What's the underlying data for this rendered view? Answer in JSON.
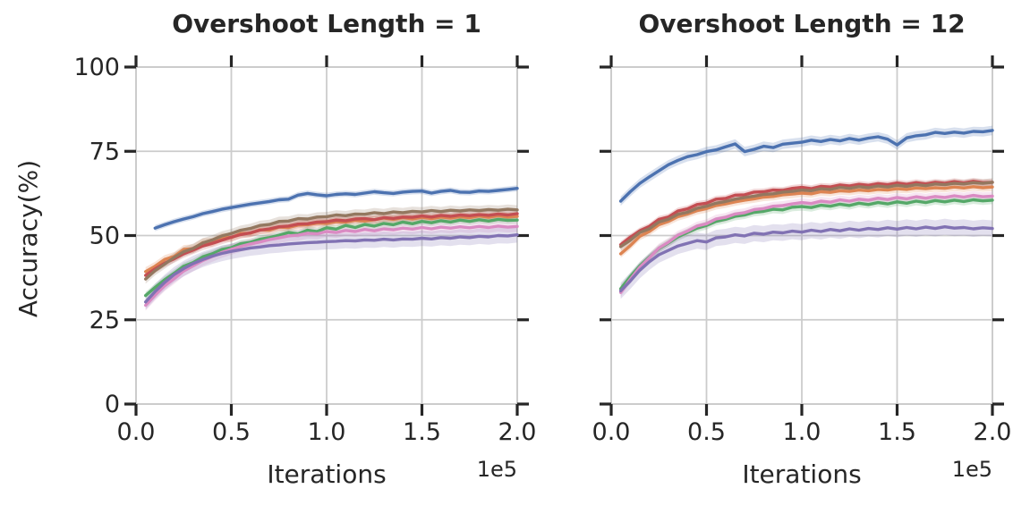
{
  "chart_data": [
    {
      "type": "line",
      "title": "Overshoot Length = 1",
      "xlabel": "Iterations",
      "ylabel": "Accuracy(%)",
      "x_offset_text": "1e5",
      "xlim": [
        0,
        2.0
      ],
      "ylim": [
        0,
        100
      ],
      "xtick_values": [
        0,
        0.5,
        1.0,
        1.5,
        2.0
      ],
      "xtick_labels": [
        "0.0",
        "0.5",
        "1.0",
        "1.5",
        "2.0"
      ],
      "ytick_values": [
        0,
        25,
        50,
        75,
        100
      ],
      "ytick_labels": [
        "0",
        "25",
        "50",
        "75",
        "100"
      ],
      "grid": true,
      "legend": "none",
      "x_step": 0.05,
      "series": [
        {
          "name": "orange",
          "color": "#DD8452",
          "band": 1.3,
          "x0": 0.05,
          "y": [
            39.3,
            40.9,
            42.9,
            43.8,
            45.9,
            46.1,
            47.9,
            48.0,
            49.5,
            49.4,
            50.6,
            50.7,
            51.7,
            51.6,
            52.5,
            52.4,
            53.1,
            53.2,
            53.7,
            53.6,
            54.1,
            54.0,
            54.5,
            54.3,
            54.7,
            55.2,
            54.8,
            55.3,
            54.9,
            55.4,
            55.0,
            55.5,
            55.2,
            55.6,
            55.3,
            55.8,
            55.4,
            55.9,
            55.5,
            55.7
          ]
        },
        {
          "name": "green",
          "color": "#55A868",
          "band": 1.1,
          "x0": 0.05,
          "y": [
            32.2,
            34.6,
            36.9,
            38.8,
            40.9,
            42.0,
            43.7,
            44.6,
            45.9,
            46.4,
            47.6,
            48.0,
            48.9,
            49.4,
            50.1,
            50.9,
            50.5,
            51.6,
            51.2,
            52.3,
            51.9,
            53.0,
            52.4,
            53.3,
            52.8,
            53.6,
            53.2,
            54.0,
            53.5,
            54.2,
            53.8,
            54.4,
            54.0,
            54.6,
            54.2,
            54.7,
            54.3,
            54.8,
            54.5,
            54.6
          ]
        },
        {
          "name": "red",
          "color": "#C44E52",
          "band": 1.2,
          "x0": 0.05,
          "y": [
            38.2,
            40.1,
            41.8,
            43.1,
            44.6,
            45.7,
            46.9,
            47.7,
            48.6,
            49.5,
            50.3,
            50.8,
            51.6,
            52.0,
            52.6,
            52.8,
            53.4,
            53.5,
            54.0,
            54.1,
            54.6,
            54.4,
            54.9,
            55.0,
            54.7,
            55.3,
            55.1,
            55.5,
            55.4,
            55.8,
            55.5,
            56.0,
            55.7,
            56.1,
            55.9,
            56.2,
            56.0,
            56.4,
            56.1,
            56.5
          ]
        },
        {
          "name": "brown",
          "color": "#937860",
          "band": 1.4,
          "x0": 0.05,
          "y": [
            37.1,
            39.6,
            41.5,
            43.5,
            45.2,
            46.2,
            47.8,
            48.7,
            49.9,
            50.6,
            51.6,
            52.1,
            53.0,
            53.3,
            54.2,
            54.3,
            55.0,
            54.9,
            55.5,
            55.6,
            56.1,
            55.9,
            56.4,
            56.3,
            56.8,
            56.5,
            57.0,
            56.8,
            57.2,
            57.0,
            57.4,
            57.1,
            57.5,
            57.3,
            57.6,
            57.4,
            57.7,
            57.5,
            57.8,
            57.6
          ]
        },
        {
          "name": "pink",
          "color": "#DA8BC3",
          "band": 1.6,
          "x0": 0.05,
          "y": [
            29.3,
            32.3,
            35.1,
            37.2,
            39.5,
            41.0,
            42.6,
            43.8,
            45.0,
            45.9,
            46.8,
            47.5,
            48.1,
            48.8,
            49.3,
            49.9,
            50.1,
            50.7,
            50.5,
            51.2,
            50.9,
            51.5,
            51.2,
            51.8,
            51.4,
            52.0,
            51.7,
            52.2,
            51.9,
            52.4,
            52.0,
            52.5,
            52.2,
            52.6,
            52.3,
            52.7,
            52.4,
            52.8,
            52.5,
            52.7
          ]
        },
        {
          "name": "purple",
          "color": "#8172B3",
          "band": 2.3,
          "x0": 0.05,
          "y": [
            30.3,
            33.4,
            36.1,
            38.4,
            40.2,
            41.7,
            42.9,
            43.9,
            44.7,
            45.3,
            45.8,
            46.3,
            46.6,
            47.0,
            47.2,
            47.5,
            47.7,
            47.9,
            48.0,
            48.2,
            48.3,
            48.5,
            48.4,
            48.7,
            48.6,
            48.9,
            48.7,
            49.0,
            48.9,
            49.2,
            49.0,
            49.4,
            49.2,
            49.6,
            49.4,
            49.8,
            49.6,
            50.0,
            49.9,
            50.2
          ]
        },
        {
          "name": "blue",
          "color": "#4C72B0",
          "band": 0.9,
          "x0": 0.1,
          "y": [
            52.2,
            53.2,
            54.1,
            54.9,
            55.6,
            56.5,
            57.1,
            57.8,
            58.3,
            58.8,
            59.3,
            59.7,
            60.1,
            60.6,
            60.8,
            62.0,
            62.5,
            62.1,
            61.8,
            62.2,
            62.4,
            62.2,
            62.6,
            63.0,
            62.7,
            62.5,
            62.9,
            63.1,
            63.2,
            62.6,
            63.1,
            63.4,
            62.9,
            62.8,
            63.2,
            63.1,
            63.4,
            63.7,
            64.0
          ]
        }
      ]
    },
    {
      "type": "line",
      "title": "Overshoot Length = 12",
      "xlabel": "Iterations",
      "ylabel": "Accuracy(%)",
      "x_offset_text": "1e5",
      "xlim": [
        0,
        2.0
      ],
      "ylim": [
        0,
        100
      ],
      "xtick_values": [
        0,
        0.5,
        1.0,
        1.5,
        2.0
      ],
      "xtick_labels": [
        "0.0",
        "0.5",
        "1.0",
        "1.5",
        "2.0"
      ],
      "ytick_values": [
        0,
        25,
        50,
        75,
        100
      ],
      "ytick_labels": [
        "0",
        "25",
        "50",
        "75",
        "100"
      ],
      "grid": true,
      "legend": "none",
      "x_step": 0.05,
      "series": [
        {
          "name": "orange",
          "color": "#DD8452",
          "band": 1.2,
          "x0": 0.05,
          "y": [
            44.6,
            47.0,
            49.8,
            51.2,
            53.2,
            54.2,
            55.6,
            56.4,
            57.4,
            58.0,
            58.9,
            59.4,
            60.0,
            60.5,
            60.9,
            61.4,
            61.6,
            62.1,
            62.3,
            62.6,
            62.4,
            63.0,
            62.8,
            63.3,
            63.1,
            63.5,
            63.3,
            63.7,
            63.5,
            63.9,
            63.7,
            64.1,
            63.9,
            64.2,
            64.0,
            64.4,
            64.1,
            64.5,
            64.2,
            64.4
          ]
        },
        {
          "name": "green",
          "color": "#55A868",
          "band": 1.2,
          "x0": 0.05,
          "y": [
            34.2,
            37.8,
            41.0,
            43.6,
            46.1,
            47.8,
            49.6,
            50.9,
            52.2,
            53.0,
            54.2,
            54.8,
            55.7,
            56.1,
            56.9,
            57.2,
            57.8,
            57.6,
            58.4,
            58.6,
            58.3,
            59.0,
            58.7,
            59.3,
            58.9,
            59.6,
            59.2,
            59.8,
            59.4,
            60.0,
            59.6,
            60.2,
            59.8,
            60.4,
            60.0,
            60.5,
            60.1,
            60.6,
            60.3,
            60.5
          ]
        },
        {
          "name": "red",
          "color": "#C44E52",
          "band": 1.0,
          "x0": 0.05,
          "y": [
            47.3,
            49.5,
            51.4,
            52.7,
            54.8,
            55.5,
            57.3,
            57.9,
            59.2,
            59.6,
            60.8,
            61.0,
            62.0,
            62.1,
            62.9,
            63.0,
            63.5,
            63.4,
            64.0,
            64.3,
            63.9,
            64.6,
            64.4,
            65.0,
            64.7,
            65.2,
            64.9,
            65.4,
            65.1,
            65.6,
            65.2,
            65.7,
            65.3,
            65.8,
            65.5,
            66.0,
            65.6,
            66.1,
            65.7,
            65.8
          ]
        },
        {
          "name": "brown",
          "color": "#937860",
          "band": 1.2,
          "x0": 0.05,
          "y": [
            46.7,
            48.6,
            50.9,
            52.0,
            54.0,
            54.8,
            56.3,
            56.9,
            58.1,
            58.7,
            59.6,
            60.1,
            60.8,
            61.3,
            61.7,
            62.2,
            62.4,
            62.9,
            63.1,
            63.5,
            63.3,
            63.9,
            63.7,
            64.3,
            64.0,
            64.5,
            64.2,
            64.7,
            64.4,
            64.9,
            64.6,
            65.1,
            64.8,
            65.3,
            65.1,
            65.5,
            65.3,
            65.7,
            65.5,
            65.8
          ]
        },
        {
          "name": "pink",
          "color": "#DA8BC3",
          "band": 1.3,
          "x0": 0.05,
          "y": [
            33.1,
            37.0,
            40.6,
            43.4,
            46.3,
            48.0,
            50.1,
            51.3,
            52.8,
            53.5,
            54.9,
            55.4,
            56.4,
            56.8,
            57.7,
            58.0,
            58.7,
            58.9,
            59.4,
            59.8,
            59.5,
            60.2,
            59.9,
            60.6,
            60.2,
            60.8,
            60.5,
            61.1,
            60.7,
            61.3,
            60.9,
            61.5,
            61.1,
            61.6,
            61.3,
            61.8,
            61.4,
            61.9,
            61.5,
            61.7
          ]
        },
        {
          "name": "purple",
          "color": "#8172B3",
          "band": 2.4,
          "x0": 0.05,
          "y": [
            33.6,
            36.5,
            39.7,
            42.2,
            44.3,
            45.6,
            46.9,
            47.7,
            48.5,
            48.1,
            49.3,
            49.6,
            50.2,
            49.9,
            50.7,
            50.4,
            51.0,
            50.8,
            51.3,
            51.0,
            51.6,
            51.2,
            51.8,
            51.4,
            52.0,
            51.6,
            52.1,
            51.8,
            52.3,
            51.9,
            52.4,
            52.0,
            52.5,
            52.1,
            52.6,
            52.2,
            52.4,
            52.0,
            52.3,
            52.1
          ]
        },
        {
          "name": "blue",
          "color": "#4C72B0",
          "band": 1.4,
          "x0": 0.05,
          "y": [
            60.2,
            63.0,
            65.5,
            67.4,
            69.2,
            71.0,
            72.3,
            73.4,
            74.0,
            74.9,
            75.4,
            76.3,
            77.2,
            74.9,
            75.6,
            76.5,
            76.1,
            77.1,
            77.4,
            77.7,
            78.3,
            77.9,
            78.5,
            78.1,
            78.8,
            78.3,
            78.9,
            79.3,
            78.6,
            76.9,
            79.0,
            79.6,
            79.9,
            80.6,
            80.3,
            80.7,
            80.4,
            80.9,
            80.8,
            81.2
          ]
        }
      ]
    }
  ]
}
